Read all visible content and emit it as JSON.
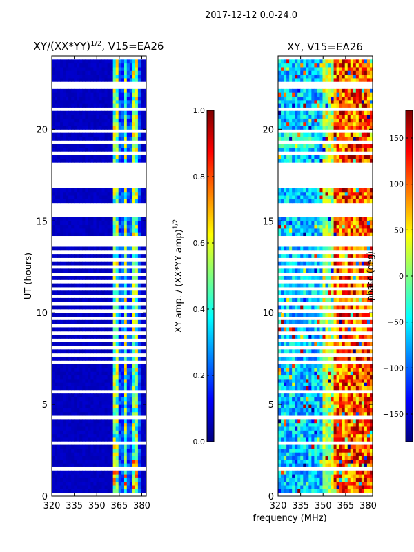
{
  "figure": {
    "suptitle": "2017-12-12 0.0-24.0",
    "shared_xlabel": "frequency (MHz)"
  },
  "colors": {
    "jet": [
      "#00007f",
      "#0000ff",
      "#007fff",
      "#00ffff",
      "#7fff7f",
      "#ffff00",
      "#ff7f00",
      "#ff0000",
      "#7f0000"
    ],
    "background": "#ffffff",
    "frame": "#000000"
  },
  "chart_data": [
    {
      "type": "heatmap",
      "title": "XY/(XX*YY)",
      "title_exponent": "1/2",
      "title_suffix": ", V15=EA26",
      "xlabel": "",
      "ylabel": "UT (hours)",
      "xlim": [
        320,
        383
      ],
      "ylim": [
        0,
        24
      ],
      "xticks": [
        320,
        335,
        350,
        365,
        380
      ],
      "yticks": [
        0,
        5,
        10,
        15,
        20
      ],
      "value_range": [
        0.0,
        1.0
      ],
      "description_of_pattern": {
        "background_value": 0.05,
        "bright_band_mhz": [
          361,
          380
        ],
        "bright_band_value_range": [
          0.3,
          0.8
        ],
        "gap_hours": [
          [
            15.2,
            15.9
          ],
          [
            16.9,
            17.9
          ],
          [
            13.6,
            13.9
          ]
        ]
      },
      "colorbar": {
        "label": "XY amp. / (XX*YY amp)",
        "label_exponent": "1/2",
        "range": [
          0.0,
          1.0
        ],
        "ticks": [
          "0.0",
          "0.2",
          "0.4",
          "0.6",
          "0.8",
          "1.0"
        ],
        "tick_values": [
          0.0,
          0.2,
          0.4,
          0.6,
          0.8,
          1.0
        ]
      }
    },
    {
      "type": "heatmap",
      "title": "XY, V15=EA26",
      "xlabel": "",
      "ylabel": "",
      "xlim": [
        320,
        383
      ],
      "ylim": [
        0,
        24
      ],
      "xticks": [
        320,
        335,
        350,
        365,
        380
      ],
      "yticks": [
        0,
        5,
        10,
        15,
        20
      ],
      "value_range": [
        -180,
        180
      ],
      "description_of_pattern": {
        "low_phase_region_mhz": [
          320,
          350
        ],
        "high_phase_region_mhz": [
          355,
          383
        ],
        "gap_hours": [
          [
            15.2,
            15.9
          ],
          [
            16.9,
            17.9
          ]
        ]
      },
      "colorbar": {
        "label": "phase (deg)",
        "range": [
          -180,
          180
        ],
        "ticks": [
          "150",
          "100",
          "50",
          "0",
          "−50",
          "−100",
          "−150"
        ],
        "tick_values": [
          150,
          100,
          50,
          0,
          -50,
          -100,
          -150
        ]
      }
    }
  ]
}
